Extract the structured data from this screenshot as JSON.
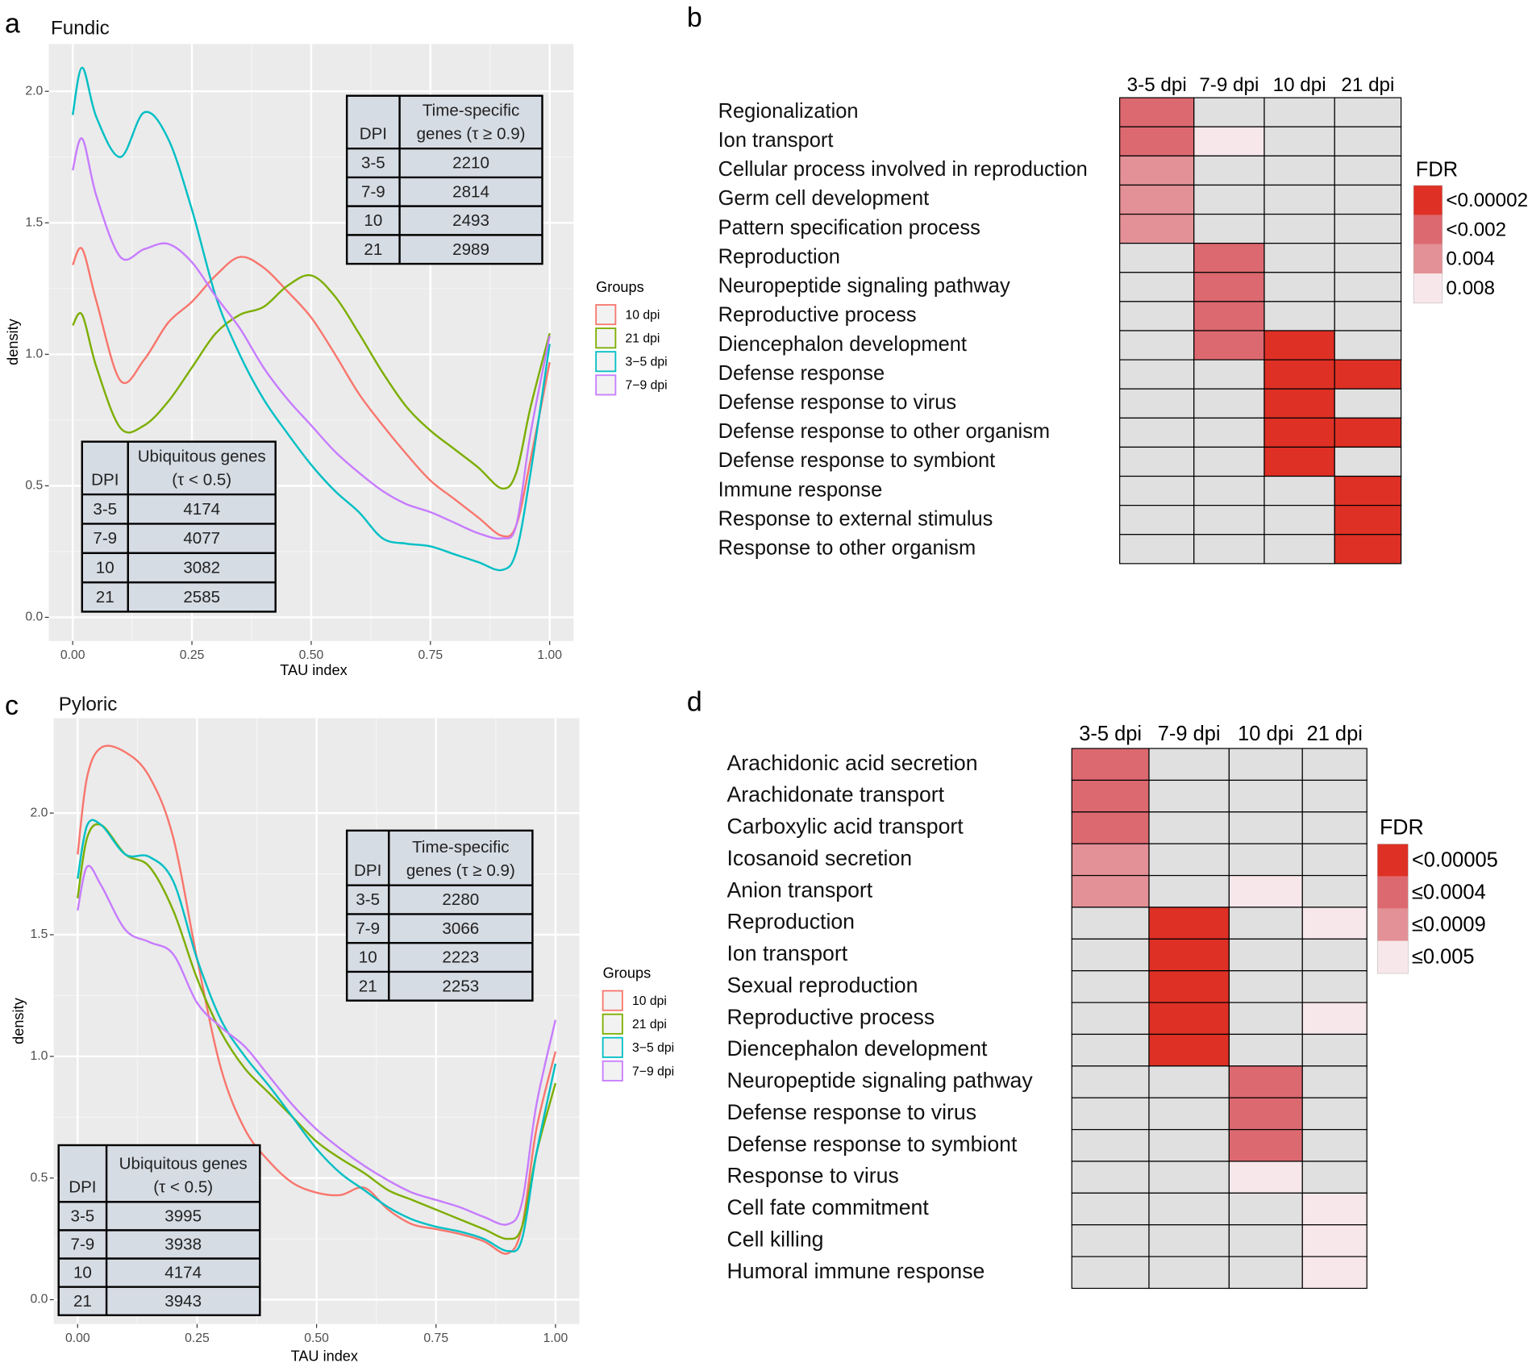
{
  "chart_data": [
    {
      "type": "density",
      "panel": "a",
      "title": "Fundic",
      "xlabel": "TAU index",
      "ylabel": "density",
      "legend_title": "Groups",
      "grid": true,
      "xlim": [
        -0.05,
        1.05
      ],
      "ylim": [
        -0.09,
        2.18
      ],
      "xticks": [
        {
          "value": 0,
          "label": "0.00"
        },
        {
          "value": 0.25,
          "label": "0.25"
        },
        {
          "value": 0.5,
          "label": "0.50"
        },
        {
          "value": 0.75,
          "label": "0.75"
        },
        {
          "value": 1,
          "label": "1.00"
        }
      ],
      "yticks": [
        {
          "value": 0,
          "label": "0.0"
        },
        {
          "value": 0.5,
          "label": "0.5"
        },
        {
          "value": 1,
          "label": "1.0"
        },
        {
          "value": 1.5,
          "label": "1.5"
        },
        {
          "value": 2,
          "label": "2.0"
        }
      ],
      "x": [
        0,
        0.02,
        0.05,
        0.1,
        0.15,
        0.2,
        0.25,
        0.3,
        0.35,
        0.4,
        0.45,
        0.5,
        0.55,
        0.6,
        0.65,
        0.7,
        0.75,
        0.8,
        0.85,
        0.9,
        0.93,
        0.96,
        1.0
      ],
      "series": [
        {
          "name": "10 dpi",
          "color": "#F8766D",
          "values": [
            1.34,
            1.4,
            1.2,
            0.9,
            0.98,
            1.12,
            1.2,
            1.3,
            1.37,
            1.33,
            1.24,
            1.14,
            1.0,
            0.85,
            0.73,
            0.62,
            0.52,
            0.45,
            0.38,
            0.31,
            0.35,
            0.6,
            0.97
          ]
        },
        {
          "name": "21 dpi",
          "color": "#7CAE00",
          "values": [
            1.11,
            1.15,
            0.95,
            0.72,
            0.73,
            0.82,
            0.95,
            1.08,
            1.15,
            1.18,
            1.26,
            1.3,
            1.22,
            1.08,
            0.93,
            0.8,
            0.71,
            0.64,
            0.57,
            0.49,
            0.55,
            0.8,
            1.08
          ]
        },
        {
          "name": "3−5 dpi",
          "color": "#00BFC4",
          "values": [
            1.91,
            2.09,
            1.9,
            1.75,
            1.92,
            1.82,
            1.55,
            1.22,
            1.0,
            0.83,
            0.7,
            0.58,
            0.48,
            0.4,
            0.3,
            0.28,
            0.27,
            0.24,
            0.21,
            0.18,
            0.25,
            0.55,
            1.04
          ]
        },
        {
          "name": "7−9 dpi",
          "color": "#C77CFF",
          "values": [
            1.7,
            1.82,
            1.6,
            1.37,
            1.4,
            1.42,
            1.35,
            1.22,
            1.1,
            0.95,
            0.83,
            0.73,
            0.63,
            0.55,
            0.48,
            0.43,
            0.4,
            0.36,
            0.32,
            0.3,
            0.35,
            0.7,
            1.07
          ]
        }
      ],
      "tables": [
        {
          "columns": [
            [
              "DPI"
            ],
            [
              "Time-specific",
              "genes (τ ≥ 0.9)"
            ]
          ],
          "rows": [
            [
              "3-5",
              2210
            ],
            [
              "7-9",
              2814
            ],
            [
              "10",
              2493
            ],
            [
              "21",
              2989
            ]
          ]
        },
        {
          "columns": [
            [
              "DPI"
            ],
            [
              "Ubiquitous genes",
              "(τ < 0.5)"
            ]
          ],
          "rows": [
            [
              "3-5",
              4174
            ],
            [
              "7-9",
              4077
            ],
            [
              "10",
              3082
            ],
            [
              "21",
              2585
            ]
          ]
        }
      ]
    },
    {
      "type": "heatmap",
      "panel": "b",
      "columns": [
        "3-5 dpi",
        "7-9 dpi",
        "10 dpi",
        "21 dpi"
      ],
      "rows": [
        "Regionalization",
        "Ion transport",
        "Cellular process involved in reproduction",
        "Germ cell development",
        "Pattern specification process",
        "Reproduction",
        "Neuropeptide signaling pathway",
        "Reproductive process",
        "Diencephalon development",
        "Defense response",
        "Defense response to virus",
        "Defense response to other organism",
        "Defense response to symbiont",
        "Immune response",
        "Response to external stimulus",
        "Response to other organism"
      ],
      "cells": [
        [
          1,
          null,
          null,
          null
        ],
        [
          1,
          3,
          null,
          null
        ],
        [
          2,
          null,
          null,
          null
        ],
        [
          2,
          null,
          null,
          null
        ],
        [
          2,
          null,
          null,
          null
        ],
        [
          null,
          1,
          null,
          null
        ],
        [
          null,
          1,
          null,
          null
        ],
        [
          null,
          1,
          null,
          null
        ],
        [
          null,
          1,
          0,
          null
        ],
        [
          null,
          null,
          0,
          0
        ],
        [
          null,
          null,
          0,
          null
        ],
        [
          null,
          null,
          0,
          0
        ],
        [
          null,
          null,
          0,
          null
        ],
        [
          null,
          null,
          null,
          0
        ],
        [
          null,
          null,
          null,
          0
        ],
        [
          null,
          null,
          null,
          0
        ]
      ],
      "na_color": "#E0E0E0",
      "legend_title": "FDR",
      "levels": [
        {
          "label": "<0.00002",
          "color": "#DE3025"
        },
        {
          "label": "<0.002",
          "color": "#DD6970"
        },
        {
          "label": "0.004",
          "color": "#E39196"
        },
        {
          "label": "0.008",
          "color": "#F8E7EA"
        }
      ]
    },
    {
      "type": "density",
      "panel": "c",
      "title": "Pyloric",
      "xlabel": "TAU index",
      "ylabel": "density",
      "legend_title": "Groups",
      "grid": true,
      "xlim": [
        -0.05,
        1.05
      ],
      "ylim": [
        -0.1,
        2.39
      ],
      "xticks": [
        {
          "value": 0,
          "label": "0.00"
        },
        {
          "value": 0.25,
          "label": "0.25"
        },
        {
          "value": 0.5,
          "label": "0.50"
        },
        {
          "value": 0.75,
          "label": "0.75"
        },
        {
          "value": 1,
          "label": "1.00"
        }
      ],
      "yticks": [
        {
          "value": 0,
          "label": "0.0"
        },
        {
          "value": 0.5,
          "label": "0.5"
        },
        {
          "value": 1,
          "label": "1.0"
        },
        {
          "value": 1.5,
          "label": "1.5"
        },
        {
          "value": 2,
          "label": "2.0"
        }
      ],
      "x": [
        0,
        0.02,
        0.05,
        0.1,
        0.15,
        0.2,
        0.25,
        0.3,
        0.35,
        0.4,
        0.45,
        0.5,
        0.55,
        0.6,
        0.65,
        0.7,
        0.75,
        0.8,
        0.85,
        0.9,
        0.93,
        0.96,
        1.0
      ],
      "series": [
        {
          "name": "10 dpi",
          "color": "#F8766D",
          "values": [
            1.83,
            2.15,
            2.27,
            2.25,
            2.15,
            1.9,
            1.4,
            0.95,
            0.7,
            0.57,
            0.48,
            0.44,
            0.43,
            0.46,
            0.37,
            0.31,
            0.29,
            0.27,
            0.24,
            0.19,
            0.3,
            0.7,
            1.02
          ]
        },
        {
          "name": "21 dpi",
          "color": "#7CAE00",
          "values": [
            1.65,
            1.9,
            1.95,
            1.83,
            1.78,
            1.6,
            1.32,
            1.1,
            0.95,
            0.85,
            0.75,
            0.65,
            0.58,
            0.52,
            0.45,
            0.41,
            0.37,
            0.33,
            0.29,
            0.25,
            0.3,
            0.6,
            0.89
          ]
        },
        {
          "name": "3−5 dpi",
          "color": "#00BFC4",
          "values": [
            1.73,
            1.95,
            1.95,
            1.83,
            1.82,
            1.72,
            1.4,
            1.15,
            1.0,
            0.88,
            0.75,
            0.62,
            0.52,
            0.45,
            0.38,
            0.33,
            0.3,
            0.28,
            0.25,
            0.2,
            0.25,
            0.6,
            0.97
          ]
        },
        {
          "name": "7−9 dpi",
          "color": "#C77CFF",
          "values": [
            1.6,
            1.78,
            1.7,
            1.52,
            1.47,
            1.42,
            1.22,
            1.12,
            1.04,
            0.92,
            0.8,
            0.7,
            0.62,
            0.55,
            0.49,
            0.44,
            0.41,
            0.38,
            0.34,
            0.31,
            0.4,
            0.8,
            1.15
          ]
        }
      ],
      "tables": [
        {
          "columns": [
            [
              "DPI"
            ],
            [
              "Time-specific",
              "genes (τ ≥ 0.9)"
            ]
          ],
          "rows": [
            [
              "3-5",
              2280
            ],
            [
              "7-9",
              3066
            ],
            [
              "10",
              2223
            ],
            [
              "21",
              2253
            ]
          ]
        },
        {
          "columns": [
            [
              "DPI"
            ],
            [
              "Ubiquitous genes",
              "(τ < 0.5)"
            ]
          ],
          "rows": [
            [
              "3-5",
              3995
            ],
            [
              "7-9",
              3938
            ],
            [
              "10",
              4174
            ],
            [
              "21",
              3943
            ]
          ]
        }
      ]
    },
    {
      "type": "heatmap",
      "panel": "d",
      "columns": [
        "3-5 dpi",
        "7-9 dpi",
        "10 dpi",
        "21 dpi"
      ],
      "rows": [
        "Arachidonic acid secretion",
        "Arachidonate transport",
        "Carboxylic acid transport",
        "Icosanoid secretion",
        "Anion transport",
        "Reproduction",
        "Ion transport",
        "Sexual reproduction",
        "Reproductive process",
        "Diencephalon development",
        "Neuropeptide signaling pathway",
        "Defense response to virus",
        "Defense response to symbiont",
        "Response to virus",
        "Cell fate commitment",
        "Cell killing",
        "Humoral immune response"
      ],
      "cells": [
        [
          1,
          null,
          null,
          null
        ],
        [
          1,
          null,
          null,
          null
        ],
        [
          1,
          null,
          null,
          null
        ],
        [
          2,
          null,
          null,
          null
        ],
        [
          2,
          null,
          3,
          null
        ],
        [
          null,
          0,
          null,
          3
        ],
        [
          null,
          0,
          null,
          null
        ],
        [
          null,
          0,
          null,
          null
        ],
        [
          null,
          0,
          null,
          3
        ],
        [
          null,
          0,
          null,
          null
        ],
        [
          null,
          null,
          1,
          null
        ],
        [
          null,
          null,
          1,
          null
        ],
        [
          null,
          null,
          1,
          null
        ],
        [
          null,
          null,
          3,
          null
        ],
        [
          null,
          null,
          null,
          3
        ],
        [
          null,
          null,
          null,
          3
        ],
        [
          null,
          null,
          null,
          3
        ]
      ],
      "na_color": "#E0E0E0",
      "legend_title": "FDR",
      "levels": [
        {
          "label": "<0.00005",
          "color": "#DE3025"
        },
        {
          "label": "≤0.0004",
          "color": "#DD6970"
        },
        {
          "label": "≤0.0009",
          "color": "#E39196"
        },
        {
          "label": "≤0.005",
          "color": "#F8E7EA"
        }
      ]
    }
  ]
}
